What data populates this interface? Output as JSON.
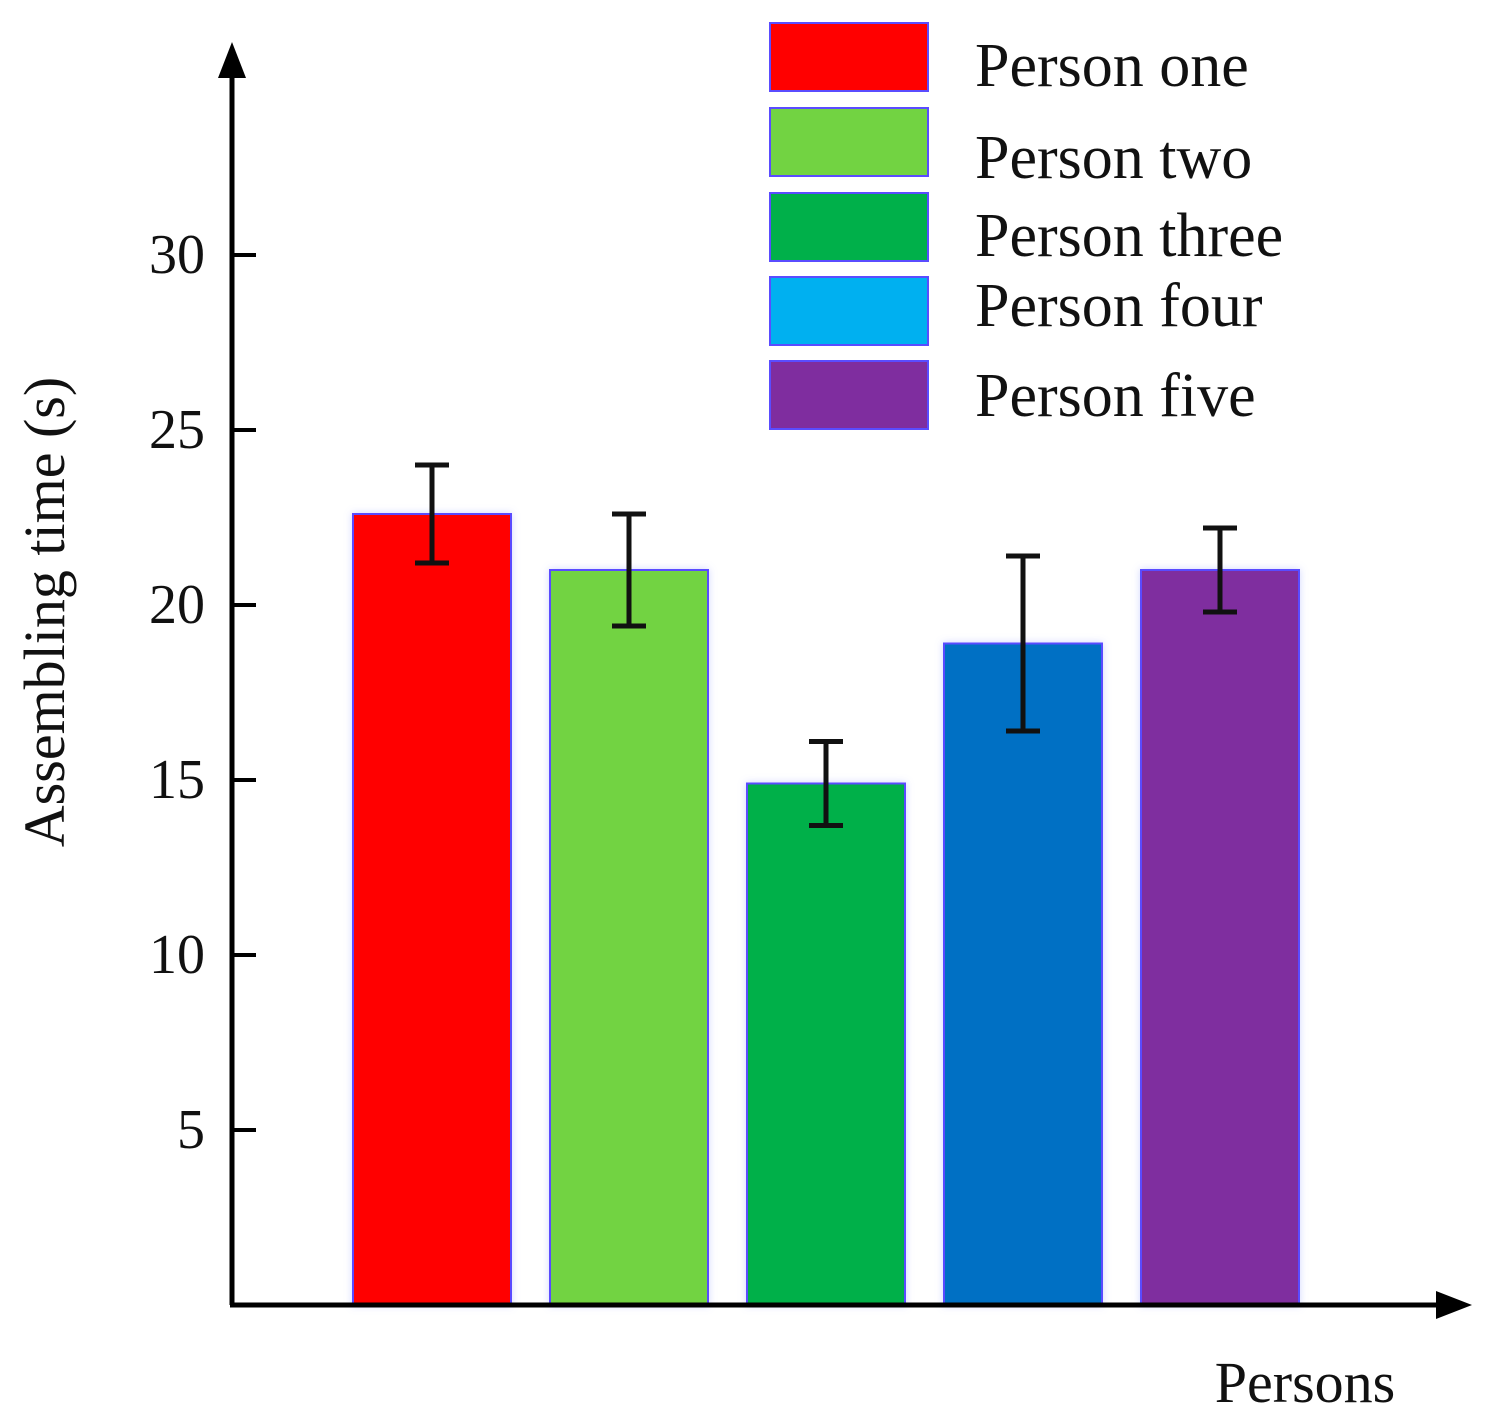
{
  "chart_data": {
    "type": "bar",
    "title": "",
    "xlabel": "Persons",
    "ylabel": "Assembling time (s)",
    "ylim": [
      0,
      33
    ],
    "yticks": [
      5,
      10,
      15,
      20,
      25,
      30
    ],
    "grid": false,
    "legend_position": "top-right",
    "series": [
      {
        "name": "Person one",
        "value": 22.6,
        "error": 1.4,
        "color": "#ff0000"
      },
      {
        "name": "Person two",
        "value": 21.0,
        "error": 1.6,
        "color": "#72d342"
      },
      {
        "name": "Person three",
        "value": 14.9,
        "error": 1.2,
        "color": "#00b04a"
      },
      {
        "name": "Person four",
        "value": 18.9,
        "error": 2.5,
        "color": "#0070c4",
        "legend_color": "#00b0f0"
      },
      {
        "name": "Person five",
        "value": 21.0,
        "error": 1.2,
        "color": "#7f2d9f"
      }
    ]
  }
}
